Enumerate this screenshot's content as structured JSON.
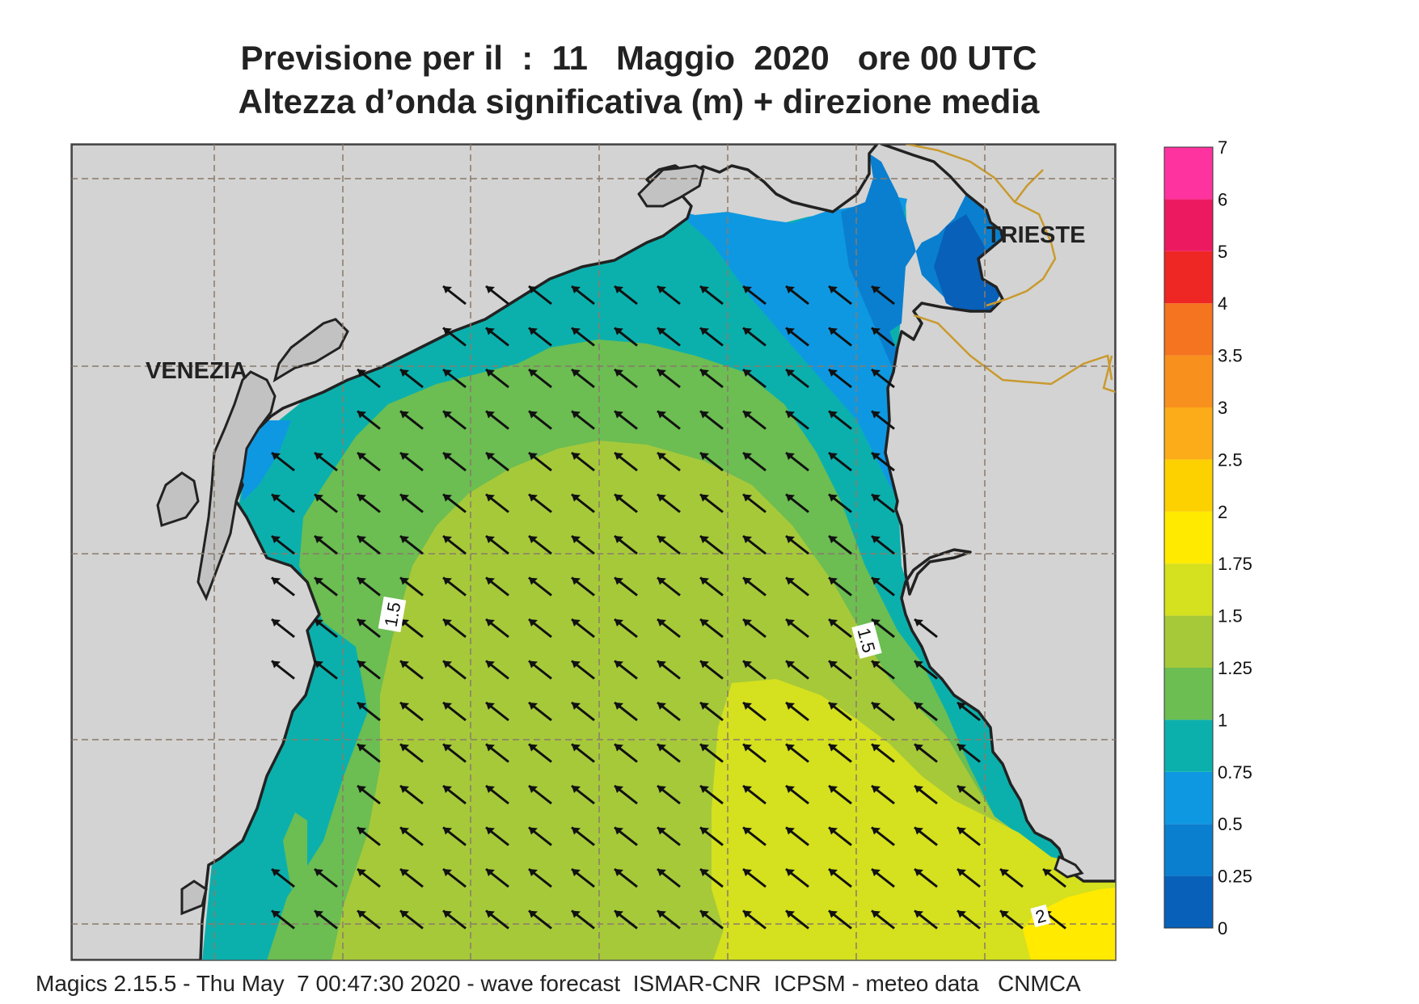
{
  "title": {
    "line1": "Previsione per il  :  11   Maggio  2020   ore 00 UTC",
    "line2": "Altezza d’onda significativa (m) + direzione media"
  },
  "places": {
    "venezia": "VENEZIA",
    "trieste": "TRIESTE"
  },
  "contour_labels": [
    "1.5",
    "1.5",
    "2"
  ],
  "legend": {
    "ticks": [
      "0",
      "0.25",
      "0.5",
      "0.75",
      "1",
      "1.25",
      "1.5",
      "1.75",
      "2",
      "2.5",
      "3",
      "3.5",
      "4",
      "5",
      "6",
      "7"
    ],
    "colors": [
      "#0860b8",
      "#0a7fcf",
      "#0e98e2",
      "#0bb0ad",
      "#6cbd52",
      "#a6c93a",
      "#d5e01e",
      "#ffea00",
      "#fdd000",
      "#fcac18",
      "#f8901e",
      "#f4741f",
      "#ee2724",
      "#ed1960",
      "#ff33a0"
    ]
  },
  "wave_direction": "north-west",
  "footer": "Magics 2.15.5 - Thu May  7 00:47:30 2020 - wave forecast  ISMAR-CNR  ICPSM - meteo data   CNMCA"
}
